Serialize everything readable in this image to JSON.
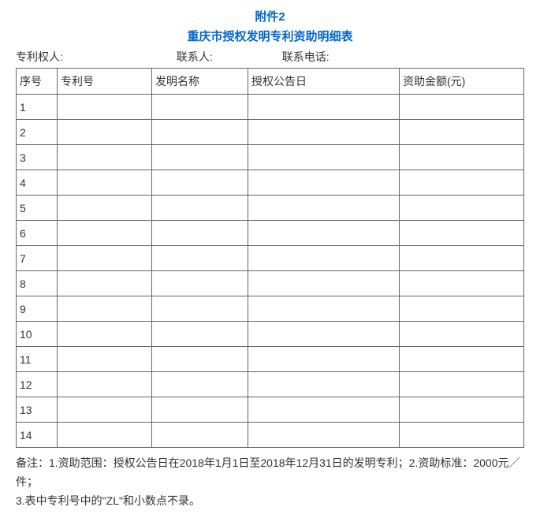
{
  "header": {
    "attachment_label": "附件2",
    "title": "重庆市授权发明专利资助明细表"
  },
  "info_fields": {
    "patentee_label": "专利权人:",
    "contact_label": "联系人:",
    "phone_label": "联系电话:"
  },
  "table": {
    "columns": [
      "序号",
      "专利号",
      "发明名称",
      "授权公告日",
      "资助金额(元)"
    ],
    "rows": [
      [
        "1",
        "",
        "",
        "",
        ""
      ],
      [
        "2",
        "",
        "",
        "",
        ""
      ],
      [
        "3",
        "",
        "",
        "",
        ""
      ],
      [
        "4",
        "",
        "",
        "",
        ""
      ],
      [
        "5",
        "",
        "",
        "",
        ""
      ],
      [
        "6",
        "",
        "",
        "",
        ""
      ],
      [
        "7",
        "",
        "",
        "",
        ""
      ],
      [
        "8",
        "",
        "",
        "",
        ""
      ],
      [
        "9",
        "",
        "",
        "",
        ""
      ],
      [
        "10",
        "",
        "",
        "",
        ""
      ],
      [
        "11",
        "",
        "",
        "",
        ""
      ],
      [
        "12",
        "",
        "",
        "",
        ""
      ],
      [
        "13",
        "",
        "",
        "",
        ""
      ],
      [
        "14",
        "",
        "",
        "",
        ""
      ]
    ],
    "col_classes": [
      "col-seq",
      "col-patent",
      "col-name",
      "col-date",
      "col-amount"
    ]
  },
  "notes": {
    "line1": "备注：1.资助范围：授权公告日在2018年1月1日至2018年12月31日的发明专利；2.资助标准：2000元／件；",
    "line2": "3.表中专利号中的\"ZL\"和小数点不录。"
  },
  "styling": {
    "title_color": "#0066cc",
    "text_color": "#333333",
    "border_color": "#666666",
    "background_color": "#ffffff",
    "title_fontsize": 15,
    "body_fontsize": 14
  }
}
